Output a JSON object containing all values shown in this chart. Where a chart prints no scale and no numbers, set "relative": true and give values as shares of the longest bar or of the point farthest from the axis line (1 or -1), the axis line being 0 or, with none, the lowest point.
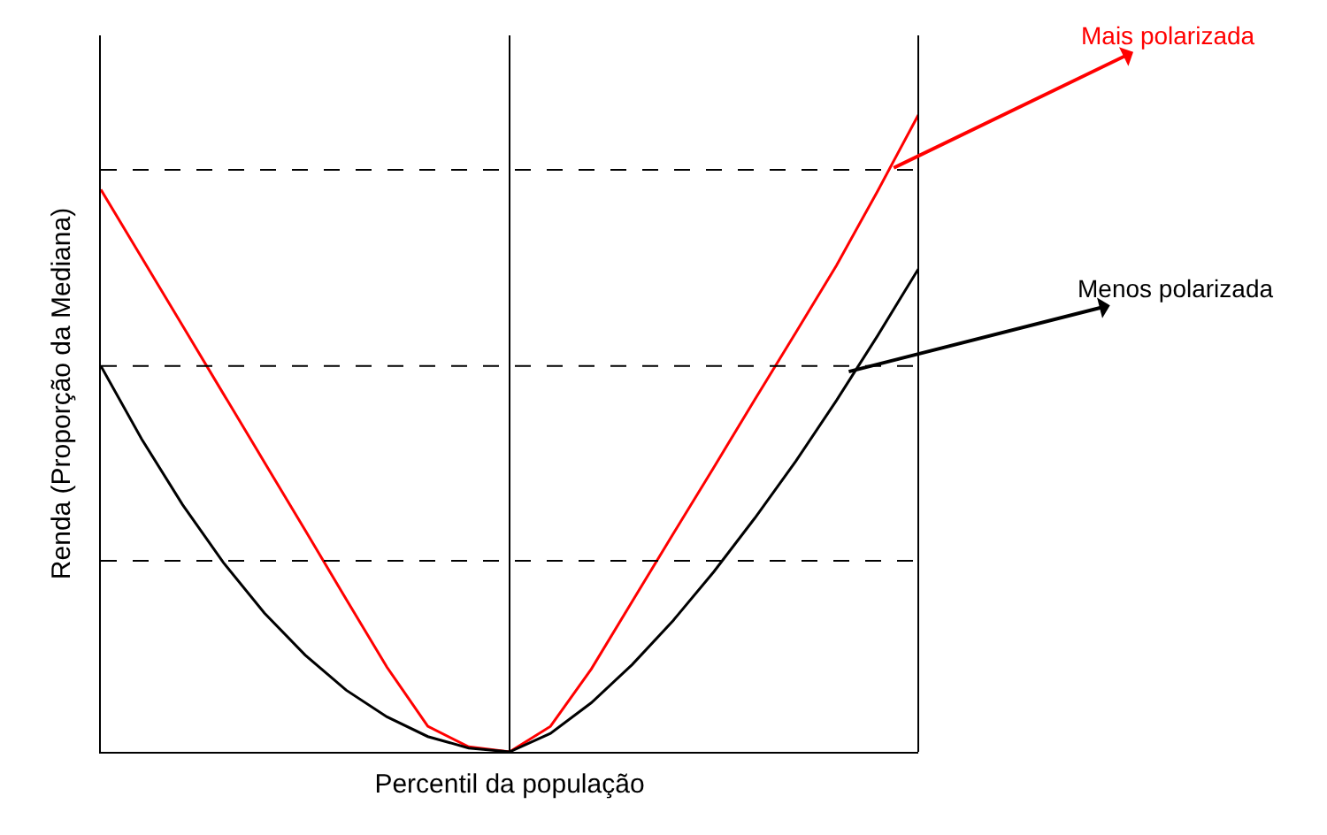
{
  "chart_data": {
    "type": "line",
    "relative": true,
    "xlabel": "Percentil da população",
    "ylabel": "Renda (Proporção da Mediana)",
    "categories": [
      null,
      null,
      null,
      null,
      null,
      null,
      null,
      null,
      null,
      null,
      null,
      null,
      null,
      null,
      null,
      null,
      null,
      null,
      null,
      null,
      null
    ],
    "series": [
      {
        "name": "Mais polarizada",
        "color": "#ff0000",
        "values": [
          0.883,
          0.776,
          0.669,
          0.562,
          0.455,
          0.348,
          0.24,
          0.133,
          0.04,
          0.008,
          0,
          0.04,
          0.13,
          0.236,
          0.342,
          0.447,
          0.553,
          0.658,
          0.764,
          0.88,
          1.0
        ]
      },
      {
        "name": "Menos polarizada",
        "color": "#000000",
        "values": [
          0.606,
          0.491,
          0.388,
          0.297,
          0.218,
          0.152,
          0.097,
          0.055,
          0.024,
          0.006,
          0,
          0.029,
          0.077,
          0.137,
          0.206,
          0.283,
          0.367,
          0.456,
          0.552,
          0.653,
          0.758
        ]
      }
    ],
    "ref_lines": [
      {
        "axis": "y",
        "value": 0.914,
        "color": "#000000",
        "line_style": "dashed"
      },
      {
        "axis": "y",
        "value": 0.606,
        "color": "#000000",
        "line_style": "dashed"
      },
      {
        "axis": "y",
        "value": 0.3,
        "color": "#000000",
        "line_style": "dashed"
      }
    ],
    "legend": false,
    "tick_labels": false,
    "marker": "none",
    "line_style": "solid"
  }
}
